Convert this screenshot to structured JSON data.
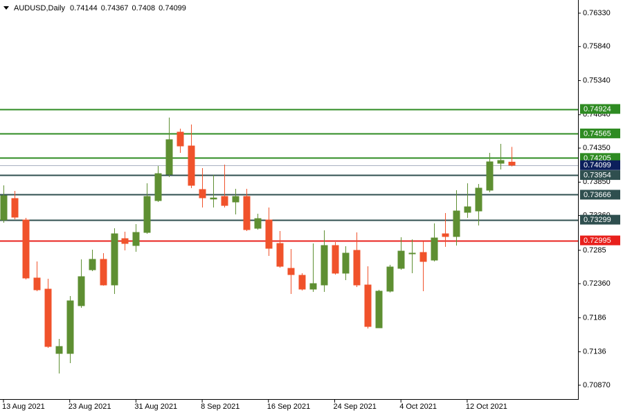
{
  "chart_data": {
    "type": "candlestick",
    "title": "AUDUSD,Daily",
    "categories": [
      "13 Aug 2021",
      null,
      null,
      null,
      null,
      null,
      "23 Aug 2021",
      null,
      null,
      null,
      null,
      null,
      "31 Aug 2021",
      null,
      null,
      null,
      null,
      null,
      "8 Sep 2021",
      null,
      null,
      null,
      null,
      null,
      "16 Sep 2021",
      null,
      null,
      null,
      null,
      null,
      "24 Sep 2021",
      null,
      null,
      null,
      null,
      null,
      "4 Oct 2021",
      null,
      null,
      null,
      null,
      null,
      "12 Oct 2021",
      null,
      null,
      null,
      null
    ],
    "open": [
      0.73295,
      0.7361,
      0.73295,
      0.72443,
      0.7228,
      0.71336,
      0.71336,
      0.72037,
      0.72564,
      0.72717,
      0.72341,
      0.73021,
      0.7292,
      0.73112,
      0.73579,
      0.73965,
      0.74584,
      0.74381,
      0.73742,
      0.73602,
      0.7364,
      0.73559,
      0.7364,
      0.73173,
      0.73295,
      0.7295,
      0.72585,
      0.72483,
      0.7228,
      0.72341,
      0.7292,
      0.72514,
      0.72849,
      0.72341,
      0.71712,
      0.7225,
      0.72585,
      0.72798,
      0.72818,
      0.72706,
      0.73092,
      0.73052,
      0.73407,
      0.73427,
      0.73732,
      0.74127,
      0.74144
    ],
    "high": [
      0.73803,
      0.73721,
      0.73326,
      0.72686,
      0.72432,
      0.71549,
      0.72179,
      0.72717,
      0.72859,
      0.72808,
      0.73173,
      0.73123,
      0.73234,
      0.73833,
      0.74087,
      0.74797,
      0.74635,
      0.74696,
      0.74056,
      0.73955,
      0.74107,
      0.73752,
      0.73752,
      0.73386,
      0.73478,
      0.73133,
      0.72869,
      0.72514,
      0.7295,
      0.73143,
      0.7297,
      0.7291,
      0.73112,
      0.72615,
      0.7227,
      0.72636,
      0.73041,
      0.7301,
      0.7298,
      0.73244,
      0.73397,
      0.73732,
      0.73833,
      0.73823,
      0.7428,
      0.74412,
      0.74367
    ],
    "low": [
      0.73255,
      0.73305,
      0.72422,
      0.7225,
      0.71417,
      0.71042,
      0.71194,
      0.72006,
      0.72544,
      0.72331,
      0.72209,
      0.72849,
      0.72828,
      0.73092,
      0.73559,
      0.73924,
      0.7428,
      0.73762,
      0.73478,
      0.73478,
      0.73478,
      0.73376,
      0.73133,
      0.73153,
      0.72767,
      0.72595,
      0.72209,
      0.7226,
      0.7224,
      0.7224,
      0.72493,
      0.72412,
      0.7231,
      0.71702,
      0.71712,
      0.7223,
      0.72564,
      0.72514,
      0.7225,
      0.72686,
      0.729,
      0.7292,
      0.73326,
      0.73214,
      0.73701,
      0.74036,
      0.7408
    ],
    "close": [
      0.7365,
      0.73336,
      0.72443,
      0.7227,
      0.71438,
      0.71438,
      0.72108,
      0.72463,
      0.72717,
      0.72341,
      0.73092,
      0.7295,
      0.73112,
      0.7364,
      0.73975,
      0.74473,
      0.74381,
      0.73803,
      0.7362,
      0.73618,
      0.73508,
      0.7364,
      0.73153,
      0.73315,
      0.72879,
      0.72615,
      0.72493,
      0.7228,
      0.72361,
      0.7292,
      0.72514,
      0.72808,
      0.72341,
      0.71732,
      0.7225,
      0.72605,
      0.72838,
      0.72808,
      0.72686,
      0.73031,
      0.73052,
      0.73427,
      0.73488,
      0.73762,
      0.74148,
      0.74168,
      0.74099
    ],
    "up_color": "#5e8f32",
    "down_color": "#f0522b",
    "ylim": [
      0.70656,
      0.76523
    ],
    "yticks": [
      {
        "value": 0.7633,
        "label": "0.76330"
      },
      {
        "value": 0.7584,
        "label": "0.75840"
      },
      {
        "value": 0.7534,
        "label": "0.75340"
      },
      {
        "value": 0.7484,
        "label": "0.74840"
      },
      {
        "value": 0.7435,
        "label": "0.74350"
      },
      {
        "value": 0.7385,
        "label": "0.73850"
      },
      {
        "value": 0.7336,
        "label": "0.73360"
      },
      0.7285,
      {
        "value": 0.7236,
        "label": "0.72360"
      },
      0.7186,
      0.7136,
      {
        "value": 0.7087,
        "label": "0.70870"
      }
    ],
    "levels": [
      {
        "value": 0.74924,
        "color": "#2e8b22"
      },
      {
        "value": 0.74565,
        "color": "#2e8b22"
      },
      {
        "value": 0.74205,
        "color": "#2e8b22"
      },
      {
        "value": 0.73954,
        "color": "#2f4f4f"
      },
      {
        "value": 0.73666,
        "color": "#2f4f4f"
      },
      {
        "value": 0.73299,
        "color": "#2f4f4f"
      },
      {
        "value": 0.72995,
        "color": "#e8201c"
      }
    ],
    "price_line": {
      "value": 0.74099,
      "color": "#0c1f5c"
    }
  }
}
